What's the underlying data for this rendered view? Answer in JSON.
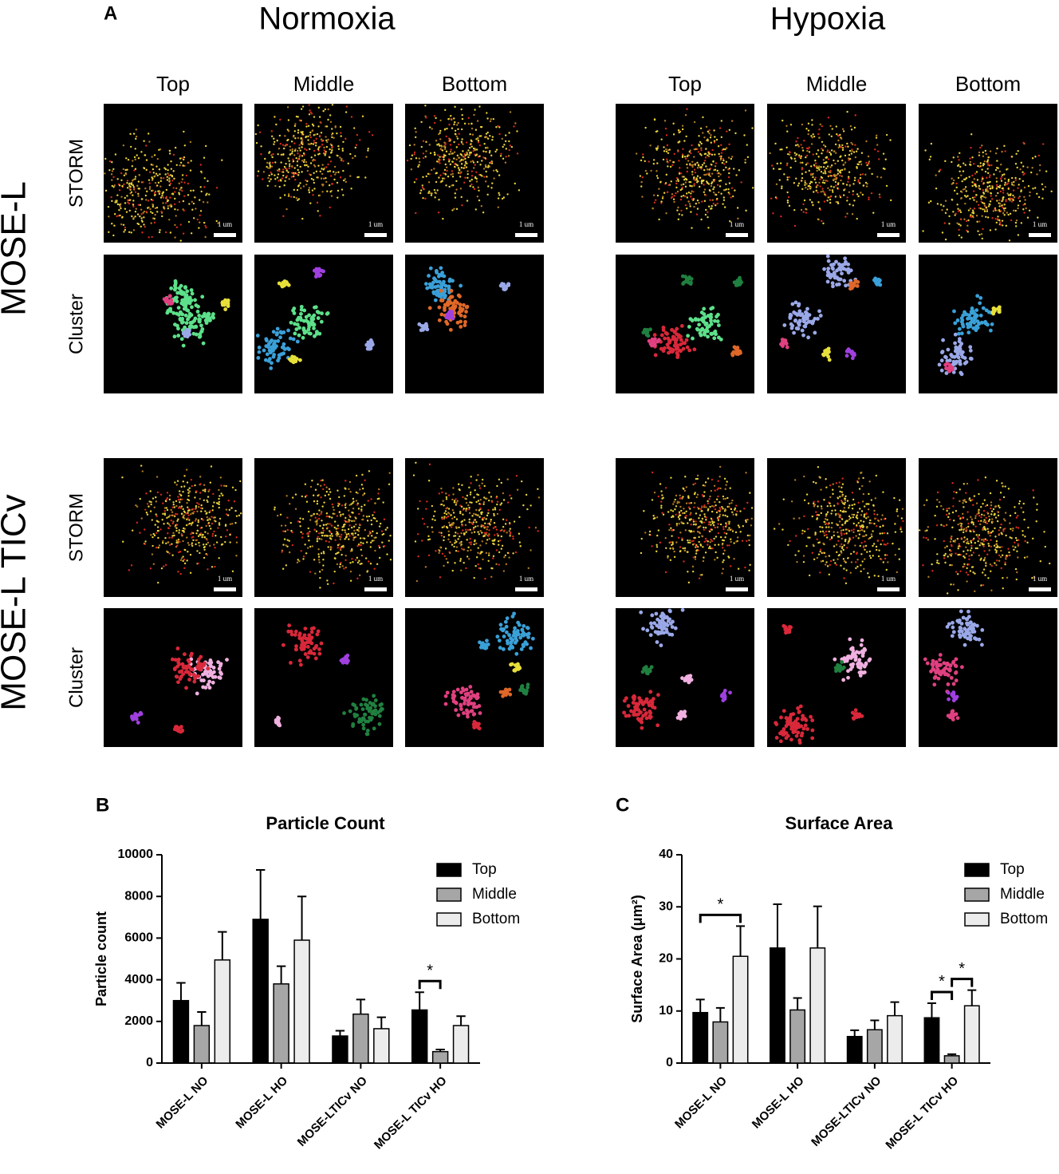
{
  "panel_a": {
    "label": "A",
    "conditions": [
      "Normoxia",
      "Hypoxia"
    ],
    "positions": [
      "Top",
      "Middle",
      "Bottom"
    ],
    "cell_lines": [
      "MOSE-L",
      "MOSE-L TICv"
    ],
    "rows": [
      "STORM",
      "Cluster"
    ],
    "scale_bar": "1 um"
  },
  "chart_data": [
    {
      "type": "bar",
      "panel": "B",
      "title": "Particle Count",
      "ylabel": "Particle count",
      "categories": [
        "MOSE-L NO",
        "MOSE-L HO",
        "MOSE-LTICv NO",
        "MOSE-L TICv HO"
      ],
      "series": [
        {
          "name": "Top",
          "color": "#000000",
          "values": [
            3000,
            6900,
            1300,
            2550
          ],
          "errors": [
            850,
            2370,
            250,
            850
          ]
        },
        {
          "name": "Middle",
          "color": "#a6a6a6",
          "values": [
            1800,
            3800,
            2350,
            550
          ],
          "errors": [
            650,
            850,
            700,
            100
          ]
        },
        {
          "name": "Bottom",
          "color": "#ececec",
          "values": [
            4950,
            5900,
            1650,
            1800
          ],
          "errors": [
            1350,
            2100,
            550,
            450
          ]
        }
      ],
      "ylim": [
        0,
        10000
      ],
      "yticks": [
        0,
        2000,
        4000,
        6000,
        8000,
        10000
      ],
      "legend": "upper right",
      "annotations": [
        {
          "text": "*",
          "category": "MOSE-L TICv HO",
          "series": [
            "Top",
            "Middle"
          ]
        }
      ]
    },
    {
      "type": "bar",
      "panel": "C",
      "title": "Surface Area",
      "ylabel": "Surface Area (μm²)",
      "categories": [
        "MOSE-L NO",
        "MOSE-L HO",
        "MOSE-LTICv NO",
        "MOSE-L TICv HO"
      ],
      "series": [
        {
          "name": "Top",
          "color": "#000000",
          "values": [
            9.7,
            22.1,
            5.1,
            8.7
          ],
          "errors": [
            2.5,
            8.4,
            1.2,
            2.8
          ]
        },
        {
          "name": "Middle",
          "color": "#a6a6a6",
          "values": [
            7.9,
            10.2,
            6.4,
            1.4
          ],
          "errors": [
            2.7,
            2.3,
            1.8,
            0.3
          ]
        },
        {
          "name": "Bottom",
          "color": "#ececec",
          "values": [
            20.5,
            22.1,
            9.1,
            11.0
          ],
          "errors": [
            5.8,
            8.0,
            2.6,
            3.0
          ]
        }
      ],
      "ylim": [
        0,
        40
      ],
      "yticks": [
        0,
        10,
        20,
        30,
        40
      ],
      "legend": "upper right",
      "annotations": [
        {
          "text": "*",
          "category": "MOSE-L NO",
          "series": [
            "Top",
            "Bottom"
          ]
        },
        {
          "text": "*",
          "category": "MOSE-L TICv HO",
          "series": [
            "Top",
            "Middle"
          ]
        },
        {
          "text": "*",
          "category": "MOSE-L TICv HO",
          "series": [
            "Middle",
            "Bottom"
          ]
        }
      ]
    }
  ]
}
